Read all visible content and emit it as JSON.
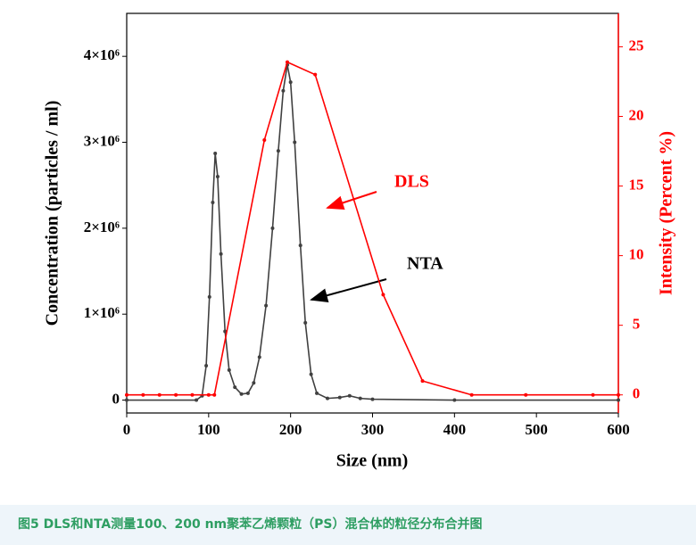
{
  "chart_data": {
    "type": "line",
    "xlabel": "Size (nm)",
    "ylabel": "Concentration (particles / ml)",
    "y2label": "Intensity (Percent %)",
    "xlim": [
      0,
      600
    ],
    "xticks": [
      0,
      100,
      200,
      300,
      400,
      500,
      600
    ],
    "ylim": [
      -150000,
      4500000
    ],
    "yticks": [
      0,
      {
        "value": 1000000,
        "label": "1×10⁶"
      },
      {
        "value": 2000000,
        "label": "2×10⁶"
      },
      {
        "value": 3000000,
        "label": "3×10⁶"
      },
      {
        "value": 4000000,
        "label": "4×10⁶"
      }
    ],
    "y2lim": [
      -1.3,
      27.4
    ],
    "y2ticks": [
      0,
      5,
      10,
      15,
      20,
      25
    ],
    "y2color": "#ff0000",
    "series": [
      {
        "name": "NTA",
        "color": "#404040",
        "x": [
          0,
          85,
          92,
          97,
          101,
          105,
          108,
          111,
          115,
          120,
          125,
          132,
          140,
          148,
          155,
          162,
          170,
          178,
          185,
          191,
          196,
          200,
          205,
          212,
          218,
          225,
          232,
          245,
          260,
          272,
          285,
          300,
          400,
          600
        ],
        "values": [
          0,
          0,
          50000,
          400000,
          1200000,
          2300000,
          2870000,
          2600000,
          1700000,
          800000,
          350000,
          150000,
          70000,
          80000,
          200000,
          500000,
          1100000,
          2000000,
          2900000,
          3600000,
          3900000,
          3700000,
          3000000,
          1800000,
          900000,
          300000,
          80000,
          20000,
          30000,
          50000,
          20000,
          10000,
          0,
          0
        ]
      },
      {
        "name": "DLS",
        "color": "#ff0000",
        "axis": "y2",
        "x": [
          0,
          20,
          40,
          60,
          80,
          100,
          107,
          168,
          196,
          230,
          313,
          361,
          421,
          487,
          569,
          600
        ],
        "values": [
          0,
          0,
          0,
          0,
          0,
          0,
          0,
          18.3,
          23.9,
          23,
          7.2,
          1,
          0,
          0,
          0,
          0
        ]
      }
    ]
  },
  "caption": "图5 DLS和NTA测量100、200 nm聚苯乙烯颗粒（PS）混合体的粒径分布合并图"
}
